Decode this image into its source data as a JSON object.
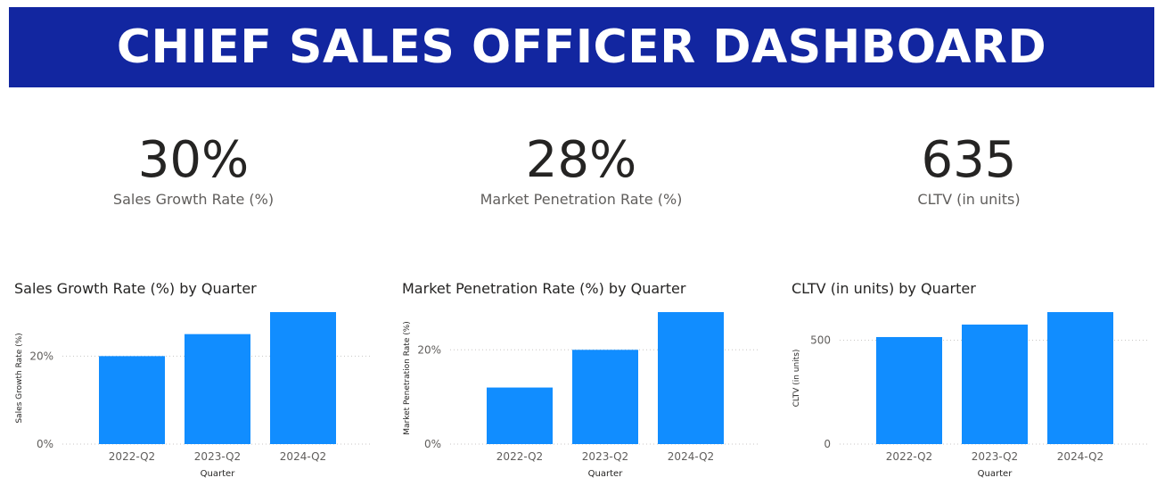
{
  "header": {
    "title": "CHIEF SALES OFFICER DASHBOARD"
  },
  "kpis": [
    {
      "value": "30%",
      "label": "Sales Growth Rate (%)"
    },
    {
      "value": "28%",
      "label": "Market Penetration Rate (%)"
    },
    {
      "value": "635",
      "label": "CLTV (in units)"
    }
  ],
  "colors": {
    "banner": "#1226a0",
    "bar": "#118dff"
  },
  "chart_data": [
    {
      "type": "bar",
      "title": "Sales Growth Rate (%) by Quarter",
      "xlabel": "Quarter",
      "ylabel": "Sales Growth Rate (%)",
      "categories": [
        "2022-Q2",
        "2023-Q2",
        "2024-Q2"
      ],
      "values": [
        20,
        25,
        30
      ],
      "ylim": [
        0,
        30
      ],
      "yticks": [
        {
          "value": 0,
          "label": "0%"
        },
        {
          "value": 20,
          "label": "20%"
        }
      ],
      "grid": true
    },
    {
      "type": "bar",
      "title": "Market Penetration Rate (%) by Quarter",
      "xlabel": "Quarter",
      "ylabel": "Market Penetration Rate (%)",
      "categories": [
        "2022-Q2",
        "2023-Q2",
        "2024-Q2"
      ],
      "values": [
        12,
        20,
        28
      ],
      "ylim": [
        0,
        28
      ],
      "yticks": [
        {
          "value": 0,
          "label": "0%"
        },
        {
          "value": 20,
          "label": "20%"
        }
      ],
      "grid": true
    },
    {
      "type": "bar",
      "title": "CLTV (in units) by Quarter",
      "xlabel": "Quarter",
      "ylabel": "CLTV (in units)",
      "categories": [
        "2022-Q2",
        "2023-Q2",
        "2024-Q2"
      ],
      "values": [
        515,
        575,
        635
      ],
      "ylim": [
        0,
        635
      ],
      "yticks": [
        {
          "value": 0,
          "label": "0"
        },
        {
          "value": 500,
          "label": "500"
        }
      ],
      "grid": true
    }
  ]
}
